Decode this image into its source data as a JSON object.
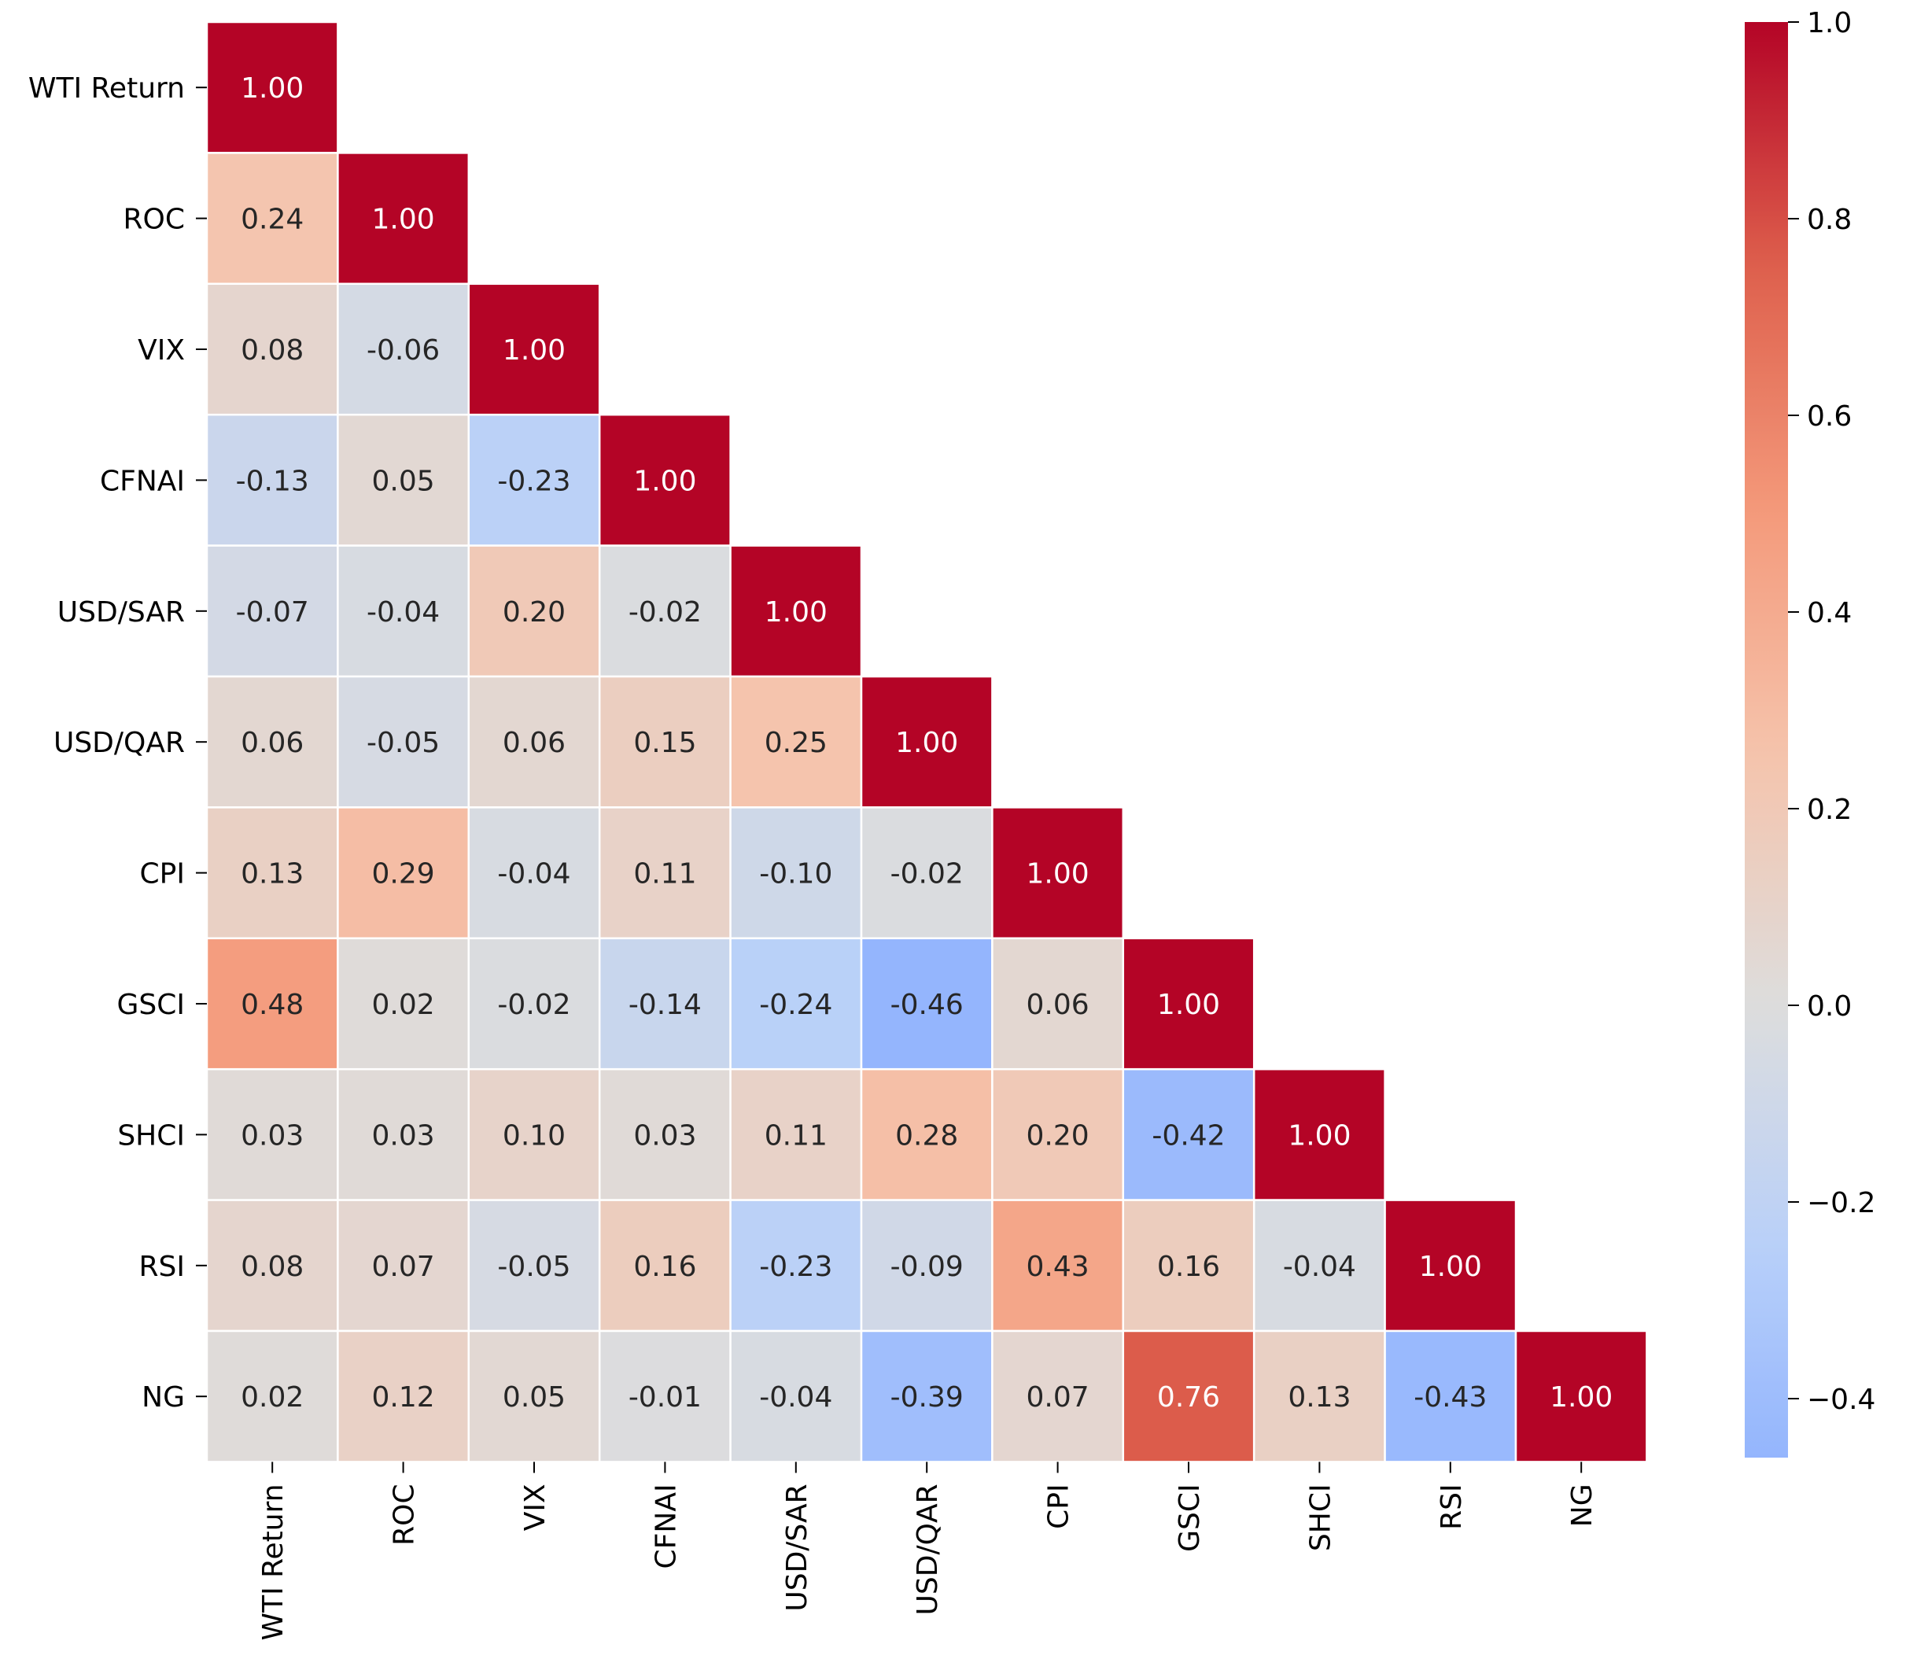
{
  "chart_data": {
    "type": "heatmap",
    "title": "",
    "xlabel": "",
    "ylabel": "",
    "variables": [
      "WTI Return",
      "ROC",
      "VIX",
      "CFNAI",
      "USD/SAR",
      "USD/QAR",
      "CPI",
      "GSCI",
      "SHCI",
      "RSI",
      "NG"
    ],
    "matrix": [
      [
        1.0
      ],
      [
        0.24,
        1.0
      ],
      [
        0.08,
        -0.06,
        1.0
      ],
      [
        -0.13,
        0.05,
        -0.23,
        1.0
      ],
      [
        -0.07,
        -0.04,
        0.2,
        -0.02,
        1.0
      ],
      [
        0.06,
        -0.05,
        0.06,
        0.15,
        0.25,
        1.0
      ],
      [
        0.13,
        0.29,
        -0.04,
        0.11,
        -0.1,
        -0.02,
        1.0
      ],
      [
        0.48,
        0.02,
        -0.02,
        -0.14,
        -0.24,
        -0.46,
        0.06,
        1.0
      ],
      [
        0.03,
        0.03,
        0.1,
        0.03,
        0.11,
        0.28,
        0.2,
        -0.42,
        1.0
      ],
      [
        0.08,
        0.07,
        -0.05,
        0.16,
        -0.23,
        -0.09,
        0.43,
        0.16,
        -0.04,
        1.0
      ],
      [
        0.02,
        0.12,
        0.05,
        -0.01,
        -0.04,
        -0.39,
        0.07,
        0.76,
        0.13,
        -0.43,
        1.0
      ]
    ],
    "mask": "upper-triangle",
    "colormap": "coolwarm",
    "center": 0.0,
    "vmin": -0.46,
    "vmax": 1.0,
    "colorbar": {
      "ticks": [
        1.0,
        0.8,
        0.6,
        0.4,
        0.2,
        0.0,
        -0.2,
        -0.4
      ],
      "tick_labels": [
        "1.0",
        "0.8",
        "0.6",
        "0.4",
        "0.2",
        "0.0",
        "−0.2",
        "−0.4"
      ]
    },
    "cell_format": "0.00",
    "colors": {
      "neg_end": "#3b4cc0",
      "neutral": "#dddddd",
      "pos_end": "#b40426",
      "cell_border": "#ffffff"
    }
  }
}
